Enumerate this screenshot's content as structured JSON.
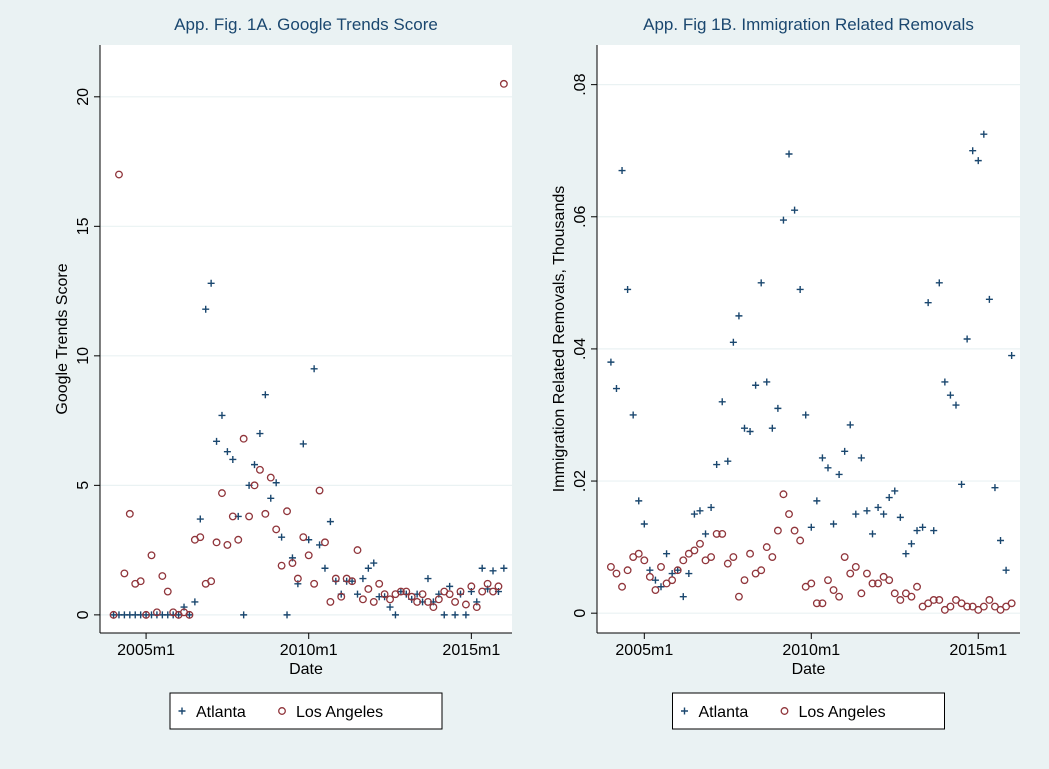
{
  "chart_data": [
    {
      "type": "scatter",
      "title": "App. Fig. 1A. Google Trends Score",
      "x_label": "Date",
      "y_label": "Google Trends Score",
      "x": [
        "2004m1",
        "2004m3",
        "2004m5",
        "2004m7",
        "2004m9",
        "2004m11",
        "2005m1",
        "2005m3",
        "2005m5",
        "2005m7",
        "2005m9",
        "2005m11",
        "2006m1",
        "2006m3",
        "2006m5",
        "2006m7",
        "2006m9",
        "2006m11",
        "2007m1",
        "2007m3",
        "2007m5",
        "2007m7",
        "2007m9",
        "2007m11",
        "2008m1",
        "2008m3",
        "2008m5",
        "2008m7",
        "2008m9",
        "2008m11",
        "2009m1",
        "2009m3",
        "2009m5",
        "2009m7",
        "2009m9",
        "2009m11",
        "2010m1",
        "2010m3",
        "2010m5",
        "2010m7",
        "2010m9",
        "2010m11",
        "2011m1",
        "2011m3",
        "2011m5",
        "2011m7",
        "2011m9",
        "2011m11",
        "2012m1",
        "2012m3",
        "2012m5",
        "2012m7",
        "2012m9",
        "2012m11",
        "2013m1",
        "2013m3",
        "2013m5",
        "2013m7",
        "2013m9",
        "2013m11",
        "2014m1",
        "2014m3",
        "2014m5",
        "2014m7",
        "2014m9",
        "2014m11",
        "2015m1",
        "2015m3",
        "2015m5",
        "2015m7",
        "2015m9",
        "2015m11",
        "2016m1"
      ],
      "series": [
        {
          "name": "Atlanta",
          "color": "#1a476f",
          "marker": "plus",
          "values": [
            0,
            0,
            0,
            0,
            0,
            0,
            0,
            0,
            0,
            0,
            0,
            0,
            0,
            0.3,
            0,
            0.5,
            3.7,
            11.8,
            12.8,
            6.7,
            7.7,
            6.3,
            6.0,
            3.8,
            0,
            5.0,
            5.8,
            7.0,
            8.5,
            4.5,
            5.1,
            3.0,
            0,
            2.2,
            1.2,
            6.6,
            2.9,
            9.5,
            2.7,
            1.8,
            3.6,
            1.3,
            0.8,
            1.3,
            1.3,
            0.8,
            1.4,
            1.8,
            2.0,
            0.7,
            0.7,
            0.3,
            0,
            0.9,
            0.8,
            0.6,
            0.8,
            0.5,
            1.4,
            0.5,
            0.8,
            0,
            1.1,
            0,
            0.8,
            0,
            0.9,
            0.5,
            1.8,
            1.0,
            1.7,
            0.9,
            1.8
          ]
        },
        {
          "name": "Los Angeles",
          "color": "#90353b",
          "marker": "circle",
          "values": [
            0,
            17.0,
            1.6,
            3.9,
            1.2,
            1.3,
            0,
            2.3,
            0.1,
            1.5,
            0.9,
            0.1,
            0,
            0.1,
            0,
            2.9,
            3.0,
            1.2,
            1.3,
            2.8,
            4.7,
            2.7,
            3.8,
            2.9,
            6.8,
            3.8,
            5.0,
            5.6,
            3.9,
            5.3,
            3.3,
            1.9,
            4.0,
            2.0,
            1.4,
            3.0,
            2.3,
            1.2,
            4.8,
            2.8,
            0.5,
            1.4,
            0.7,
            1.4,
            1.3,
            2.5,
            0.6,
            1.0,
            0.5,
            1.2,
            0.8,
            0.6,
            0.8,
            0.9,
            0.9,
            0.7,
            0.5,
            0.8,
            0.5,
            0.3,
            0.6,
            0.9,
            0.8,
            0.5,
            0.9,
            0.4,
            1.1,
            0.3,
            0.9,
            1.2,
            0.9,
            1.1,
            20.5
          ]
        }
      ],
      "xlim": [
        "2003m8",
        "2016m4"
      ],
      "xticks": [
        "2005m1",
        "2010m1",
        "2015m1"
      ],
      "ylim": [
        -0.7,
        22
      ],
      "yticks": [
        0,
        5,
        10,
        15,
        20
      ],
      "grid": true,
      "legend": "bottom"
    },
    {
      "type": "scatter",
      "title": "App. Fig 1B. Immigration Related Removals",
      "x_label": "Date",
      "y_label": "Immigration Related Removals, Thousands",
      "x": [
        "2004m1",
        "2004m3",
        "2004m5",
        "2004m7",
        "2004m9",
        "2004m11",
        "2005m1",
        "2005m3",
        "2005m5",
        "2005m7",
        "2005m9",
        "2005m11",
        "2006m1",
        "2006m3",
        "2006m5",
        "2006m7",
        "2006m9",
        "2006m11",
        "2007m1",
        "2007m3",
        "2007m5",
        "2007m7",
        "2007m9",
        "2007m11",
        "2008m1",
        "2008m3",
        "2008m5",
        "2008m7",
        "2008m9",
        "2008m11",
        "2009m1",
        "2009m3",
        "2009m5",
        "2009m7",
        "2009m9",
        "2009m11",
        "2010m1",
        "2010m3",
        "2010m5",
        "2010m7",
        "2010m9",
        "2010m11",
        "2011m1",
        "2011m3",
        "2011m5",
        "2011m7",
        "2011m9",
        "2011m11",
        "2012m1",
        "2012m3",
        "2012m5",
        "2012m7",
        "2012m9",
        "2012m11",
        "2013m1",
        "2013m3",
        "2013m5",
        "2013m7",
        "2013m9",
        "2013m11",
        "2014m1",
        "2014m3",
        "2014m5",
        "2014m7",
        "2014m9",
        "2014m11",
        "2015m1",
        "2015m3",
        "2015m5",
        "2015m7",
        "2015m9",
        "2015m11",
        "2016m1"
      ],
      "series": [
        {
          "name": "Atlanta",
          "color": "#1a476f",
          "marker": "plus",
          "values": [
            0.038,
            0.034,
            0.067,
            0.049,
            0.03,
            0.017,
            0.0135,
            0.0065,
            0.005,
            0.004,
            0.009,
            0.006,
            0.0065,
            0.0025,
            0.006,
            0.015,
            0.0155,
            0.012,
            0.016,
            0.0225,
            0.032,
            0.023,
            0.041,
            0.045,
            0.028,
            0.0275,
            0.0345,
            0.05,
            0.035,
            0.028,
            0.031,
            0.0595,
            0.0695,
            0.061,
            0.049,
            0.03,
            0.013,
            0.017,
            0.0235,
            0.022,
            0.0135,
            0.021,
            0.0245,
            0.0285,
            0.015,
            0.0235,
            0.0155,
            0.012,
            0.016,
            0.015,
            0.0175,
            0.0185,
            0.0145,
            0.009,
            0.0105,
            0.0125,
            0.013,
            0.047,
            0.0125,
            0.05,
            0.035,
            0.033,
            0.0315,
            0.0195,
            0.0415,
            0.07,
            0.0685,
            0.0725,
            0.0475,
            0.019,
            0.011,
            0.0065,
            0.039
          ]
        },
        {
          "name": "Los Angeles",
          "color": "#90353b",
          "marker": "circle",
          "values": [
            0.007,
            0.006,
            0.004,
            0.0065,
            0.0085,
            0.009,
            0.008,
            0.0055,
            0.0035,
            0.007,
            0.0045,
            0.005,
            0.0065,
            0.008,
            0.009,
            0.0095,
            0.0105,
            0.008,
            0.0085,
            0.012,
            0.012,
            0.0075,
            0.0085,
            0.0025,
            0.005,
            0.009,
            0.006,
            0.0065,
            0.01,
            0.0085,
            0.0125,
            0.018,
            0.015,
            0.0125,
            0.011,
            0.004,
            0.0045,
            0.0015,
            0.0015,
            0.005,
            0.0035,
            0.0025,
            0.0085,
            0.006,
            0.007,
            0.003,
            0.006,
            0.0045,
            0.0045,
            0.0055,
            0.005,
            0.003,
            0.002,
            0.003,
            0.0025,
            0.004,
            0.001,
            0.0015,
            0.002,
            0.002,
            0.0005,
            0.001,
            0.002,
            0.0015,
            0.001,
            0.001,
            0.0005,
            0.001,
            0.002,
            0.001,
            0.0005,
            0.001,
            0.0015
          ]
        }
      ],
      "xlim": [
        "2003m8",
        "2016m4"
      ],
      "xticks": [
        "2005m1",
        "2010m1",
        "2015m1"
      ],
      "ylim": [
        -0.003,
        0.086
      ],
      "yticks": [
        0,
        {
          "value": 0.02,
          "label": ".02"
        },
        {
          "value": 0.04,
          "label": ".04"
        },
        {
          "value": 0.06,
          "label": ".06"
        },
        {
          "value": 0.08,
          "label": ".08"
        }
      ],
      "grid": true,
      "legend": "bottom"
    }
  ]
}
